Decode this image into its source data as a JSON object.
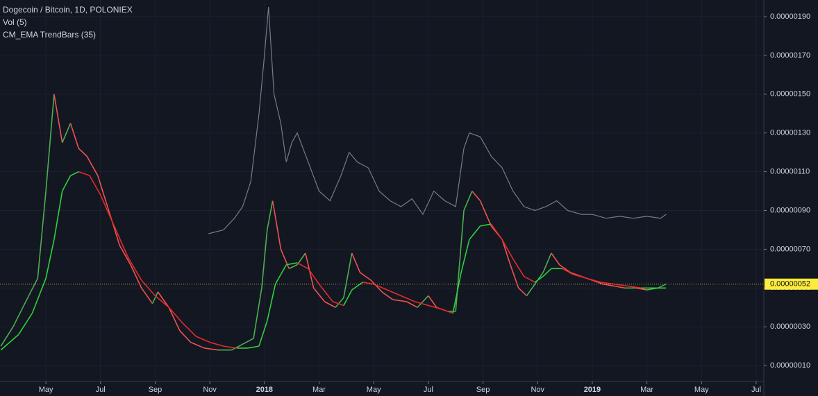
{
  "chart_data": {
    "type": "line",
    "title": "Dogecoin / Bitcoin, 1D, POLONIEX",
    "legend_items": [
      "Vol (5)",
      "CM_EMA TrendBars (35)"
    ],
    "xlim": [
      3.32,
      31.28
    ],
    "xticks": [
      {
        "value": 5,
        "label": "May"
      },
      {
        "value": 7,
        "label": "Jul"
      },
      {
        "value": 9,
        "label": "Sep"
      },
      {
        "value": 11,
        "label": "Nov"
      },
      {
        "value": 13,
        "label": "2018"
      },
      {
        "value": 15,
        "label": "Mar"
      },
      {
        "value": 17,
        "label": "May"
      },
      {
        "value": 19,
        "label": "Jul"
      },
      {
        "value": 21,
        "label": "Sep"
      },
      {
        "value": 23,
        "label": "Nov"
      },
      {
        "value": 25,
        "label": "2019"
      },
      {
        "value": 27,
        "label": "Mar"
      },
      {
        "value": 29,
        "label": "May"
      },
      {
        "value": 31,
        "label": "Jul"
      }
    ],
    "ylim": [
      1.8e-08,
      1.986e-06
    ],
    "yticks": [
      {
        "value": 1e-07,
        "label": "0.00000010"
      },
      {
        "value": 3e-07,
        "label": "0.00000030"
      },
      {
        "value": 5e-07,
        "label": "0.00000050"
      },
      {
        "value": 7e-07,
        "label": "0.00000070"
      },
      {
        "value": 9e-07,
        "label": "0.00000090"
      },
      {
        "value": 1.1e-06,
        "label": "0.00000110"
      },
      {
        "value": 1.3e-06,
        "label": "0.00000130"
      },
      {
        "value": 1.5e-06,
        "label": "0.00000150"
      },
      {
        "value": 1.7e-06,
        "label": "0.00000170"
      },
      {
        "value": 1.9e-06,
        "label": "0.00000190"
      }
    ],
    "grid": true,
    "last_price": {
      "value": 5.2e-07,
      "label": "0.00000052"
    },
    "up_color": "#4caf50",
    "down_color": "#ef5350",
    "series": [
      {
        "color": "#787b86",
        "x": [
          10.95,
          11.5,
          11.9,
          12.2,
          12.5,
          12.8,
          13.0,
          13.15,
          13.35,
          13.6,
          13.8,
          14.0,
          14.2,
          14.6,
          15.0,
          15.4,
          15.8,
          16.1,
          16.4,
          16.8,
          17.2,
          17.6,
          18.0,
          18.4,
          18.8,
          19.2,
          19.6,
          20.0,
          20.3,
          20.5,
          20.9,
          21.3,
          21.7,
          22.1,
          22.5,
          22.9,
          23.3,
          23.7,
          24.1,
          24.6,
          25.0,
          25.5,
          26.0,
          26.5,
          27.0,
          27.5,
          27.7
        ],
        "values": [
          7.8e-07,
          8e-07,
          8.6e-07,
          9.2e-07,
          1.05e-06,
          1.4e-06,
          1.7e-06,
          1.95e-06,
          1.5e-06,
          1.35e-06,
          1.15e-06,
          1.25e-06,
          1.3e-06,
          1.15e-06,
          1e-06,
          9.5e-07,
          1.08e-06,
          1.2e-06,
          1.15e-06,
          1.12e-06,
          1e-06,
          9.5e-07,
          9.2e-07,
          9.6e-07,
          8.8e-07,
          1e-06,
          9.5e-07,
          9.2e-07,
          1.22e-06,
          1.3e-06,
          1.28e-06,
          1.18e-06,
          1.12e-06,
          1e-06,
          9.2e-07,
          9e-07,
          9.2e-07,
          9.5e-07,
          9e-07,
          8.8e-07,
          8.8e-07,
          8.6e-07,
          8.7e-07,
          8.6e-07,
          8.7e-07,
          8.6e-07,
          8.8e-07
        ]
      },
      {
        "name": "Dogecoin / Bitcoin, 1D, POLONIEX",
        "color": "trend",
        "x": [
          3.35,
          3.8,
          4.3,
          4.7,
          5.0,
          5.3,
          5.6,
          5.9,
          6.2,
          6.5,
          6.9,
          7.3,
          7.7,
          8.1,
          8.5,
          8.9,
          9.1,
          9.5,
          9.9,
          10.3,
          10.8,
          11.3,
          11.8,
          12.2,
          12.6,
          12.9,
          13.1,
          13.3,
          13.6,
          13.9,
          14.2,
          14.5,
          14.8,
          15.2,
          15.6,
          15.9,
          16.2,
          16.5,
          16.9,
          17.3,
          17.7,
          18.2,
          18.6,
          19.0,
          19.3,
          19.7,
          20.0,
          20.3,
          20.6,
          20.9,
          21.3,
          21.7,
          22.0,
          22.3,
          22.6,
          22.9,
          23.2,
          23.5,
          23.8,
          24.2,
          24.6,
          25.0,
          25.4,
          25.8,
          26.2,
          26.6,
          27.0,
          27.4,
          27.7
        ],
        "values": [
          2e-07,
          3e-07,
          4.4e-07,
          5.5e-07,
          1e-06,
          1.5e-06,
          1.25e-06,
          1.35e-06,
          1.22e-06,
          1.18e-06,
          1.08e-06,
          9e-07,
          7.2e-07,
          6.2e-07,
          5e-07,
          4.2e-07,
          4.8e-07,
          4e-07,
          2.8e-07,
          2.2e-07,
          1.9e-07,
          1.8e-07,
          1.8e-07,
          2.1e-07,
          2.4e-07,
          5e-07,
          8e-07,
          9.5e-07,
          7e-07,
          6e-07,
          6.2e-07,
          6.8e-07,
          5e-07,
          4.3e-07,
          4e-07,
          4.5e-07,
          6.8e-07,
          5.8e-07,
          5.4e-07,
          4.8e-07,
          4.4e-07,
          4.3e-07,
          4e-07,
          4.6e-07,
          4e-07,
          3.8e-07,
          3.8e-07,
          9e-07,
          1e-06,
          9.5e-07,
          8.2e-07,
          7.5e-07,
          6.2e-07,
          5e-07,
          4.6e-07,
          5.2e-07,
          5.8e-07,
          6.8e-07,
          6.2e-07,
          5.8e-07,
          5.6e-07,
          5.4e-07,
          5.2e-07,
          5.1e-07,
          5e-07,
          5e-07,
          4.9e-07,
          5e-07,
          5.2e-07
        ]
      },
      {
        "name": "CM_EMA TrendBars (35)",
        "color": "ema",
        "x": [
          3.35,
          4.0,
          4.5,
          5.0,
          5.3,
          5.6,
          5.9,
          6.2,
          6.6,
          7.0,
          7.5,
          8.0,
          8.5,
          9.0,
          9.5,
          10.0,
          10.5,
          11.0,
          11.5,
          12.0,
          12.4,
          12.8,
          13.1,
          13.4,
          13.8,
          14.2,
          14.6,
          15.0,
          15.5,
          15.9,
          16.2,
          16.6,
          17.0,
          17.5,
          18.0,
          18.5,
          19.0,
          19.5,
          19.9,
          20.2,
          20.5,
          20.9,
          21.3,
          21.7,
          22.1,
          22.5,
          22.9,
          23.2,
          23.5,
          23.9,
          24.3,
          24.8,
          25.3,
          25.8,
          26.3,
          26.8,
          27.3,
          27.7
        ],
        "values": [
          1.8e-07,
          2.6e-07,
          3.7e-07,
          5.5e-07,
          7.5e-07,
          1e-06,
          1.08e-06,
          1.1e-06,
          1.08e-06,
          9.8e-07,
          8.2e-07,
          6.6e-07,
          5.4e-07,
          4.6e-07,
          4e-07,
          3.2e-07,
          2.5e-07,
          2.2e-07,
          2e-07,
          1.9e-07,
          1.9e-07,
          2e-07,
          3.3e-07,
          5.2e-07,
          6.2e-07,
          6.3e-07,
          6e-07,
          5.2e-07,
          4.3e-07,
          4.1e-07,
          4.9e-07,
          5.3e-07,
          5.2e-07,
          4.9e-07,
          4.6e-07,
          4.3e-07,
          4.1e-07,
          3.9e-07,
          3.7e-07,
          5.8e-07,
          7.5e-07,
          8.2e-07,
          8.3e-07,
          7.5e-07,
          6.5e-07,
          5.6e-07,
          5.3e-07,
          5.6e-07,
          6e-07,
          6e-07,
          5.7e-07,
          5.5e-07,
          5.3e-07,
          5.2e-07,
          5.1e-07,
          5e-07,
          5e-07,
          5e-07
        ]
      }
    ]
  }
}
